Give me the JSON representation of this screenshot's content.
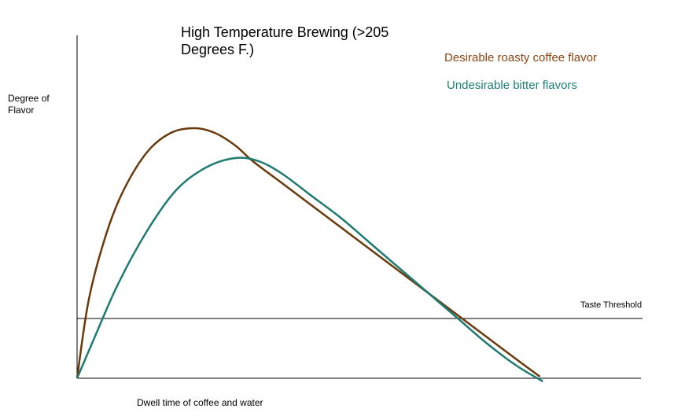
{
  "chart_data": {
    "type": "line",
    "title_lines": [
      "High Temperature Brewing (>205",
      "Degrees F.)"
    ],
    "ylabel_lines": [
      "Degree of",
      "Flavor"
    ],
    "xlabel": "Dwell time of coffee and water",
    "threshold": {
      "label": "Taste Threshold",
      "value": 0.19
    },
    "xlim": [
      0,
      1
    ],
    "ylim": [
      0,
      1
    ],
    "series": [
      {
        "name": "Desirable roasty coffee flavor",
        "color": "#6b3a0c",
        "x": [
          0,
          0.02,
          0.05,
          0.08,
          0.12,
          0.16,
          0.2,
          0.235,
          0.27,
          0.3,
          0.35,
          0.4,
          0.45,
          0.5,
          0.55,
          0.6,
          0.65,
          0.7,
          0.75,
          0.79
        ],
        "y": [
          0,
          0.25,
          0.46,
          0.6,
          0.72,
          0.78,
          0.795,
          0.78,
          0.74,
          0.69,
          0.62,
          0.55,
          0.48,
          0.41,
          0.34,
          0.27,
          0.2,
          0.13,
          0.06,
          0.005
        ]
      },
      {
        "name": "Undesirable bitter flavors",
        "color": "#1f7a72",
        "x": [
          0,
          0.03,
          0.07,
          0.12,
          0.17,
          0.22,
          0.27,
          0.31,
          0.35,
          0.4,
          0.45,
          0.5,
          0.55,
          0.6,
          0.65,
          0.7,
          0.75,
          0.795
        ],
        "y": [
          0,
          0.13,
          0.3,
          0.47,
          0.6,
          0.67,
          0.7,
          0.69,
          0.65,
          0.58,
          0.51,
          0.43,
          0.35,
          0.27,
          0.19,
          0.11,
          0.04,
          -0.01
        ]
      }
    ]
  }
}
